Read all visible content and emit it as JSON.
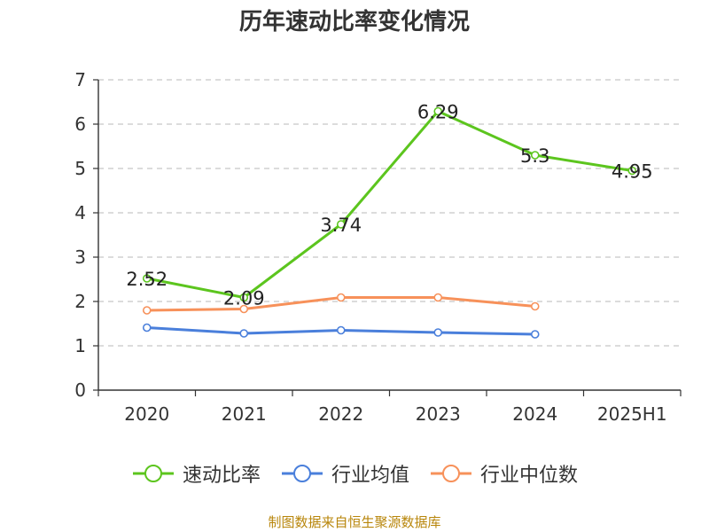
{
  "chart_data": {
    "type": "line",
    "title": "历年速动比率变化情况",
    "categories": [
      "2020",
      "2021",
      "2022",
      "2023",
      "2024",
      "2025H1"
    ],
    "ylim": [
      0,
      7
    ],
    "yticks": [
      0,
      1,
      2,
      3,
      4,
      5,
      6,
      7
    ],
    "grid": true,
    "legend_position": "bottom",
    "series": [
      {
        "name": "速动比率",
        "color": "#5cc51e",
        "values": [
          2.52,
          2.09,
          3.74,
          6.29,
          5.3,
          4.95
        ],
        "labels": [
          "2.52",
          "2.09",
          "3.74",
          "6.29",
          "5.3",
          "4.95"
        ]
      },
      {
        "name": "行业均值",
        "color": "#4a7fdb",
        "values": [
          1.41,
          1.28,
          1.35,
          1.3,
          1.26,
          null
        ]
      },
      {
        "name": "行业中位数",
        "color": "#f7915a",
        "values": [
          1.8,
          1.83,
          2.09,
          2.09,
          1.89,
          null
        ]
      }
    ]
  },
  "source": "制图数据来自恒生聚源数据库"
}
